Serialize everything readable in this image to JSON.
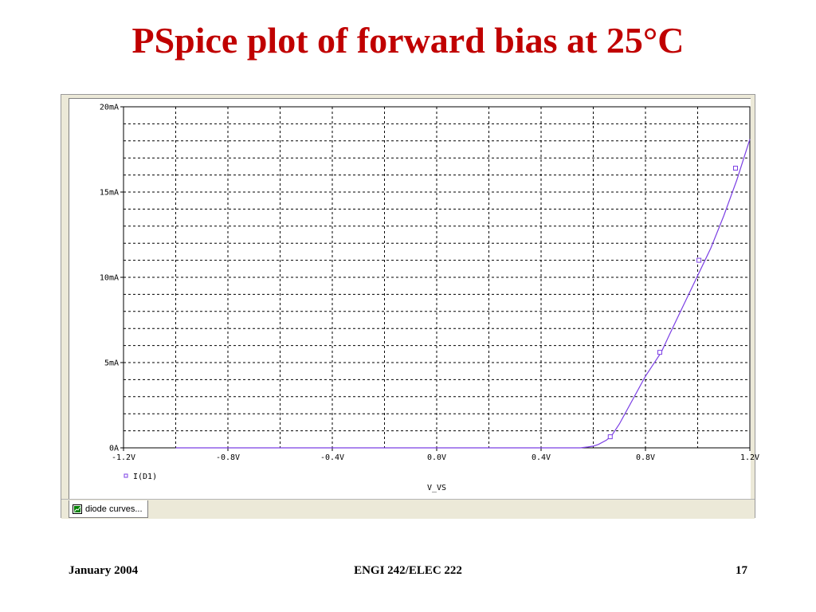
{
  "slide": {
    "title": "PSpice plot of forward bias at 25°C",
    "footer_left": "January 2004",
    "footer_center": "ENGI 242/ELEC 222",
    "footer_right": "17"
  },
  "window": {
    "tab_label": "diode curves...",
    "tab_icon": "plot-window-icon"
  },
  "colors": {
    "title": "#c00000",
    "trace": "#7b3fe4",
    "grid": "#000000"
  },
  "chart_data": {
    "type": "line",
    "xlabel": "V_VS",
    "ylabel": "",
    "xlim": [
      -1.2,
      1.2
    ],
    "ylim": [
      0,
      20
    ],
    "grid": true,
    "x_ticks": [
      -1.2,
      -0.8,
      -0.4,
      0.0,
      0.4,
      0.8,
      1.2
    ],
    "x_tick_labels": [
      "-1.2V",
      "-0.8V",
      "-0.4V",
      "0.0V",
      "0.4V",
      "0.8V",
      "1.2V"
    ],
    "y_ticks": [
      0,
      5,
      10,
      15,
      20
    ],
    "y_tick_labels": [
      "0A",
      "5mA",
      "10mA",
      "15mA",
      "20mA"
    ],
    "legend_position": "bottom-left",
    "series": [
      {
        "name": "I(D1)",
        "x": [
          -1.0,
          0.0,
          0.55,
          0.58,
          0.6,
          0.62,
          0.65,
          0.67,
          0.7,
          0.75,
          0.8,
          0.86,
          0.9,
          0.95,
          1.0,
          1.05,
          1.1,
          1.15,
          1.2
        ],
        "y": [
          0.0,
          0.0,
          0.0,
          0.05,
          0.1,
          0.2,
          0.45,
          0.7,
          1.4,
          2.8,
          4.2,
          5.6,
          6.9,
          8.5,
          10.1,
          11.7,
          13.6,
          15.7,
          18.1
        ],
        "marker_x": [
          0.665,
          0.855,
          1.005,
          1.145
        ],
        "marker_y": [
          0.65,
          5.6,
          11.0,
          16.4
        ]
      }
    ]
  }
}
